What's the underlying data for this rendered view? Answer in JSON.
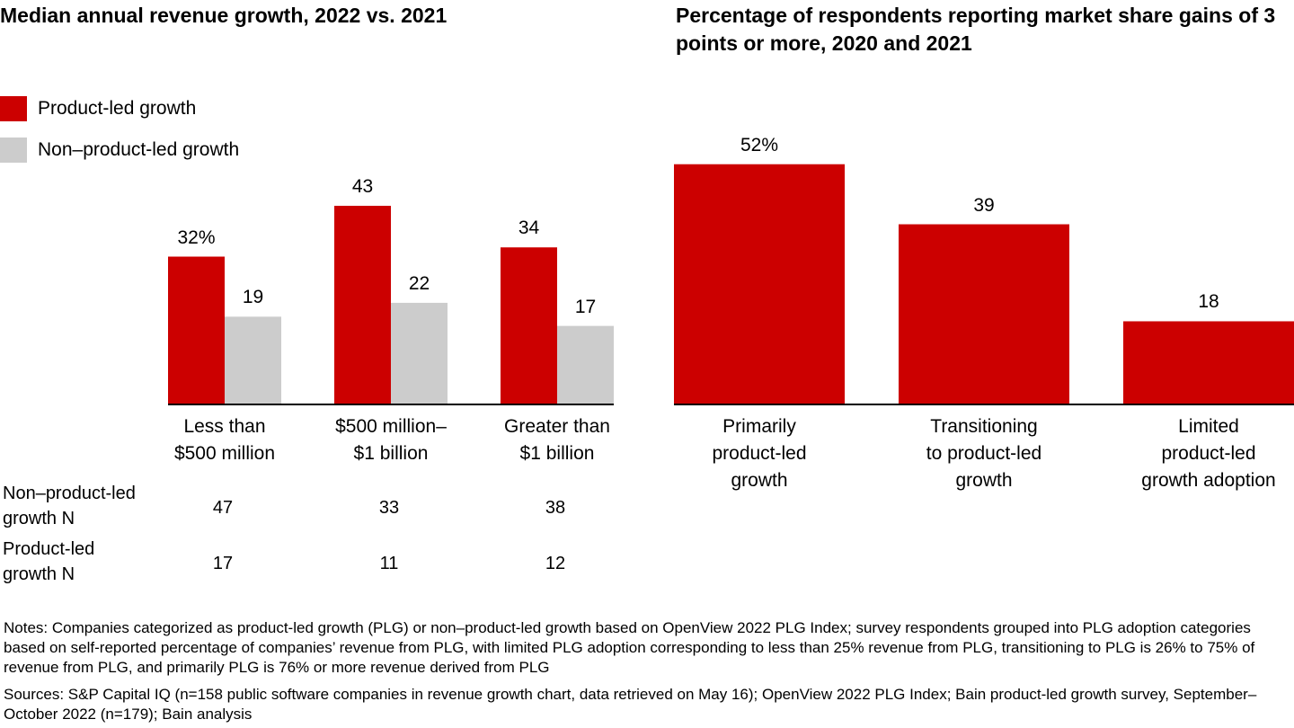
{
  "chart_data": [
    {
      "type": "grouped-bar",
      "title": "Median annual revenue growth, 2022 vs. 2021",
      "categories": [
        "Less than\n$500 million",
        "$500 million–\n$1 billion",
        "Greater than\n$1 billion"
      ],
      "legend": "top-left",
      "series": [
        {
          "name": "Product-led growth",
          "color": "#cc0000",
          "values": [
            32,
            43,
            34
          ],
          "value_labels": [
            "32%",
            "43",
            "34"
          ]
        },
        {
          "name": "Non–product-led growth",
          "color": "#cccccc",
          "values": [
            19,
            22,
            17
          ],
          "value_labels": [
            "19",
            "22",
            "17"
          ]
        }
      ]
    },
    {
      "type": "bar",
      "title": "Percentage of respondents reporting market share gains of 3 points or more, 2020 and 2021",
      "categories": [
        "Primarily\nproduct-led\ngrowth",
        "Transitioning\nto product-led\ngrowth",
        "Limited\nproduct-led\ngrowth adoption"
      ],
      "color": "#cc0000",
      "values": [
        52,
        39,
        18
      ],
      "value_labels": [
        "52%",
        "39",
        "18"
      ]
    }
  ],
  "table": {
    "rows": [
      {
        "label": "Non–product-led\ngrowth N",
        "values": [
          47,
          33,
          38
        ]
      },
      {
        "label": "Product-led\ngrowth N",
        "values": [
          17,
          11,
          12
        ]
      }
    ]
  },
  "footnotes": {
    "notes": "Notes: Companies categorized as product-led growth (PLG) or non–product-led growth based on OpenView 2022 PLG Index; survey respondents grouped into PLG adoption categories based on self-reported percentage of companies’ revenue from PLG, with limited PLG adoption corresponding to less than 25% revenue from PLG, transitioning to PLG is 26% to 75% of revenue from PLG, and primarily PLG is 76% or more revenue derived from PLG",
    "sources": "Sources: S&P Capital IQ (n=158 public software companies in revenue growth chart, data retrieved on May 16); OpenView 2022 PLG Index; Bain product-led growth survey, September–October 2022 (n=179); Bain analysis"
  }
}
